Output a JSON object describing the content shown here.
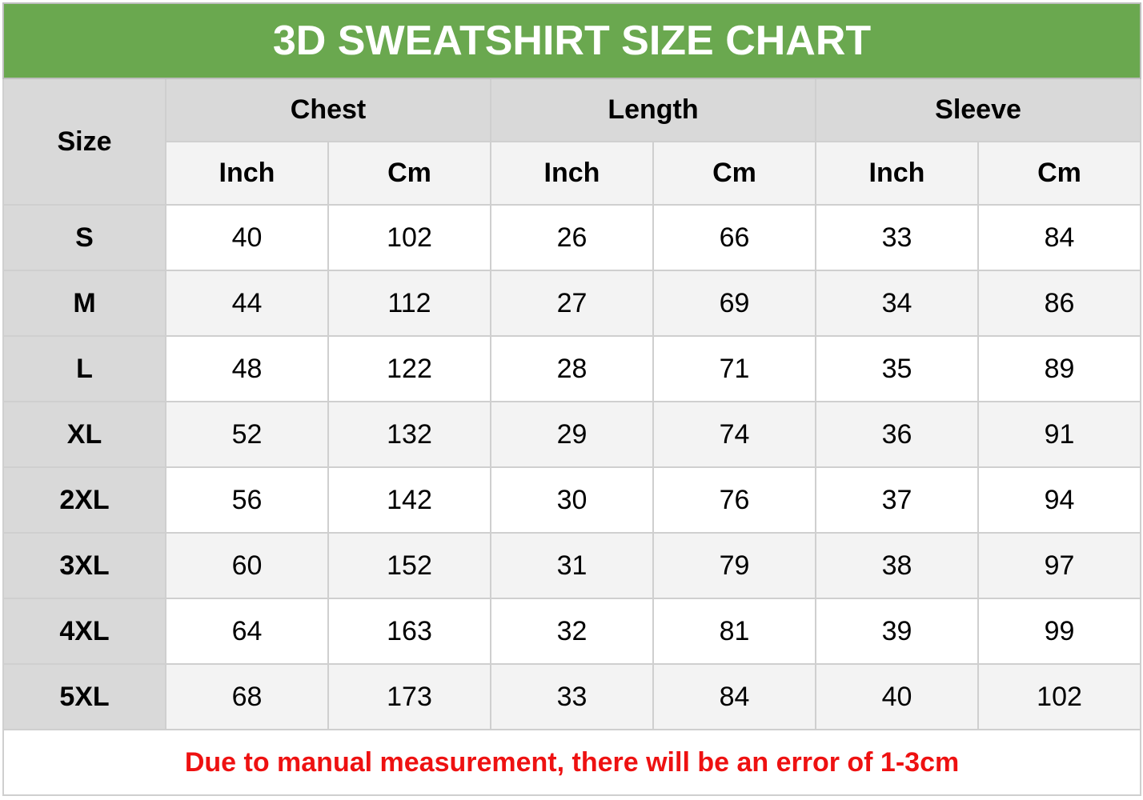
{
  "title": "3D SWEATSHIRT SIZE CHART",
  "size_header": "Size",
  "groups": [
    "Chest",
    "Length",
    "Sleeve"
  ],
  "units": [
    "Inch",
    "Cm",
    "Inch",
    "Cm",
    "Inch",
    "Cm"
  ],
  "rows": [
    {
      "size": "S",
      "values": [
        "40",
        "102",
        "26",
        "66",
        "33",
        "84"
      ]
    },
    {
      "size": "M",
      "values": [
        "44",
        "112",
        "27",
        "69",
        "34",
        "86"
      ]
    },
    {
      "size": "L",
      "values": [
        "48",
        "122",
        "28",
        "71",
        "35",
        "89"
      ]
    },
    {
      "size": "XL",
      "values": [
        "52",
        "132",
        "29",
        "74",
        "36",
        "91"
      ]
    },
    {
      "size": "2XL",
      "values": [
        "56",
        "142",
        "30",
        "76",
        "37",
        "94"
      ]
    },
    {
      "size": "3XL",
      "values": [
        "60",
        "152",
        "31",
        "79",
        "38",
        "97"
      ]
    },
    {
      "size": "4XL",
      "values": [
        "64",
        "163",
        "32",
        "81",
        "39",
        "99"
      ]
    },
    {
      "size": "5XL",
      "values": [
        "68",
        "173",
        "33",
        "84",
        "40",
        "102"
      ]
    }
  ],
  "note": "Due to manual measurement, there will be an error of 1-3cm",
  "colors": {
    "title_bg": "#6aa84f",
    "note_text": "#ee1111",
    "header_bg": "#d9d9d9",
    "alt_row_bg": "#f3f3f3"
  }
}
